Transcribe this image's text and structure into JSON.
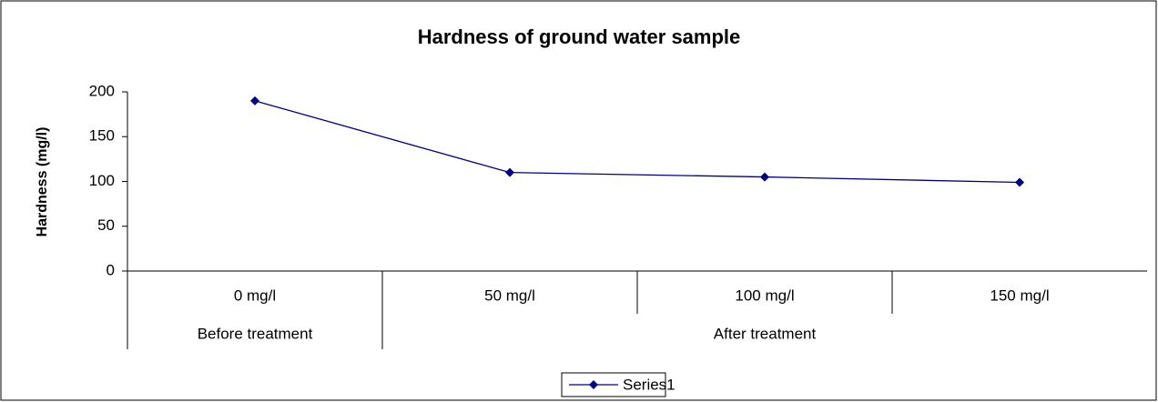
{
  "chart_data": {
    "type": "line",
    "title": "Hardness of ground water sample",
    "y_label": "Hardness (mg/l)",
    "categories": [
      "0 mg/l",
      "50 mg/l",
      "100 mg/l",
      "150 mg/l"
    ],
    "groups": [
      {
        "label": "Before treatment",
        "span": 1
      },
      {
        "label": "After treatment",
        "span": 3
      }
    ],
    "series": [
      {
        "name": "Series1",
        "color": "#000080",
        "values": [
          190,
          110,
          105,
          99
        ]
      }
    ],
    "ylim": [
      0,
      200
    ],
    "yticks": [
      0,
      50,
      100,
      150,
      200
    ],
    "grid": false,
    "legend": "bottom"
  }
}
